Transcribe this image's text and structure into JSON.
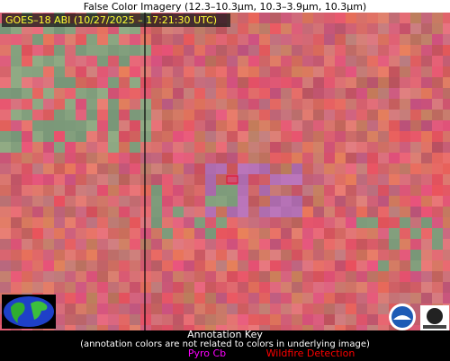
{
  "title": "False Color Imagery (12.3–10.3µm, 10.3–3.9µm, 10.3µm)",
  "image": {
    "label": "GOES–18 ABI (10/27/2025 – 17:21:30 UTC)"
  },
  "annotation_key": {
    "title": "Annotation Key",
    "note": "(annotation colors are not related to colors in underlying image)",
    "items": [
      {
        "label": "Pyro Cb",
        "color": "#ff00ff"
      },
      {
        "label": "Wildfire Detection",
        "color": "#ff0000"
      }
    ]
  }
}
